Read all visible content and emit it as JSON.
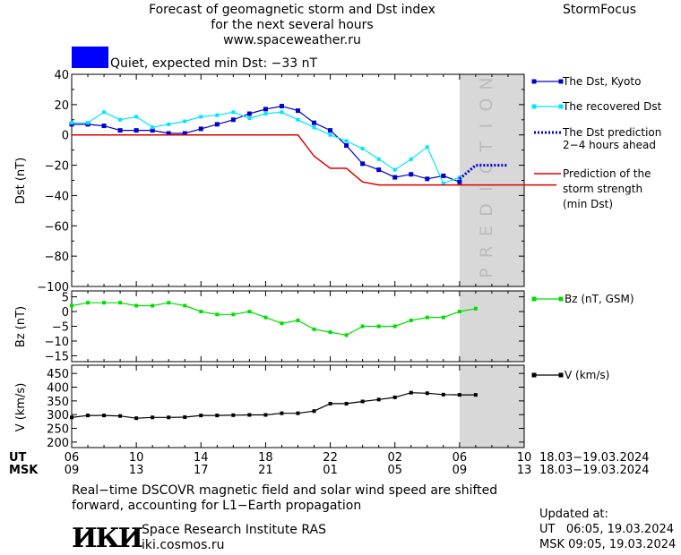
{
  "header": {
    "title_lines": [
      "Forecast of geomagnetic storm and Dst index",
      "for the next several hours",
      "www.spaceweather.ru"
    ],
    "brand": "StormFocus"
  },
  "status": {
    "text": "Quiet, expected min Dst: −33 nT",
    "swatch_color": "#0000ff"
  },
  "colors": {
    "dst": "#0000cc",
    "recovered": "#00e5ff",
    "prediction": "#0000cc",
    "storm": "#dd0000",
    "bz": "#00dd00",
    "v": "#000000",
    "shade": "#d8d8d8"
  },
  "prediction_label": "PREDICTION",
  "time_axis": {
    "ut_label": "UT",
    "msk_label": "MSK",
    "ut_ticks": [
      "06",
      "10",
      "14",
      "18",
      "22",
      "02",
      "06",
      "10"
    ],
    "msk_ticks": [
      "09",
      "13",
      "17",
      "21",
      "01",
      "05",
      "09",
      "13"
    ],
    "ut_range": "18.03−19.03.2024",
    "msk_range": "18.03−19.03.2024"
  },
  "chart_data": [
    {
      "type": "line",
      "ylabel": "Dst (nT)",
      "ylim": [
        -100,
        40
      ],
      "yticks": [
        "40",
        "20",
        "0",
        "−20",
        "−40",
        "−60",
        "−80",
        "−100"
      ],
      "x_hours_since_06UT": [
        0,
        1,
        2,
        3,
        4,
        5,
        6,
        7,
        8,
        9,
        10,
        11,
        12,
        13,
        14,
        15,
        16,
        17,
        18,
        19,
        20,
        21,
        22,
        23,
        24
      ],
      "series": [
        {
          "name": "The Dst, Kyoto",
          "values": [
            7,
            7,
            6,
            3,
            3,
            3,
            1,
            1,
            4,
            7,
            10,
            14,
            17,
            19,
            16,
            8,
            3,
            -7,
            -19,
            -23,
            -28,
            -26,
            -29,
            -27,
            -31
          ]
        },
        {
          "name": "The recovered Dst",
          "values": [
            8,
            8,
            15,
            10,
            12,
            5,
            7,
            9,
            12,
            13,
            15,
            11,
            14,
            15,
            10,
            5,
            0,
            -4,
            -9,
            -16,
            -23,
            -16,
            -8,
            -32,
            -28
          ]
        },
        {
          "name": "The Dst prediction 2−4 hours ahead",
          "x": [
            24,
            25,
            26,
            27
          ],
          "values": [
            -29,
            -20,
            -20,
            -20
          ]
        },
        {
          "name": "Prediction of the storm strength (min Dst)",
          "x": [
            0,
            14,
            15,
            16,
            17,
            18,
            19,
            20,
            30
          ],
          "values": [
            0,
            0,
            -14,
            -22,
            -22,
            -31,
            -33,
            -33,
            -33
          ]
        }
      ],
      "legend_placement": "right"
    },
    {
      "type": "line",
      "ylabel": "Bz (nT)",
      "ylim": [
        -17,
        7
      ],
      "yticks": [
        "5",
        "0",
        "−5",
        "−10",
        "−15"
      ],
      "series": [
        {
          "name": "Bz (nT, GSM)",
          "values": [
            2,
            3,
            3,
            3,
            2,
            2,
            3,
            2,
            0,
            -1,
            -1,
            0,
            -2,
            -4,
            -3,
            -6,
            -7,
            -8,
            -5,
            -5,
            -5,
            -3,
            -2,
            -2,
            0,
            1
          ]
        }
      ]
    },
    {
      "type": "line",
      "ylabel": "V (km/s)",
      "ylim": [
        180,
        480
      ],
      "yticks": [
        "450",
        "400",
        "350",
        "300",
        "250",
        "200"
      ],
      "series": [
        {
          "name": "V (km/s)",
          "values": [
            290,
            297,
            297,
            295,
            287,
            290,
            290,
            291,
            297,
            297,
            298,
            299,
            299,
            305,
            305,
            313,
            340,
            340,
            348,
            355,
            363,
            380,
            378,
            373,
            372,
            372
          ]
        }
      ]
    }
  ],
  "footer": {
    "note_line1": "Real−time DSCOVR magnetic field and solar wind speed are shifted",
    "note_line2": "forward, accounting for L1−Earth propagation",
    "org_logo": "ИКИ",
    "org_name": "Space Research Institute RAS",
    "org_site": "iki.cosmos.ru",
    "updated_label": "Updated at:",
    "updated_ut": "UT   06:05, 19.03.2024",
    "updated_msk": "MSK 09:05, 19.03.2024"
  }
}
